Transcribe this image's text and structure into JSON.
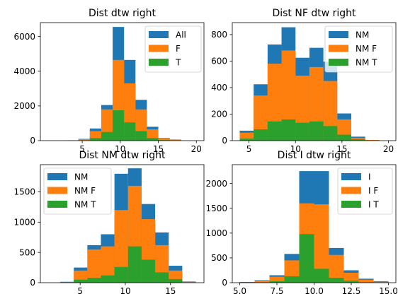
{
  "chart_data": [
    {
      "type": "bar",
      "stacking": "overlay",
      "title": "Dist dtw right",
      "xlim": [
        -0.5,
        21
      ],
      "ylim": [
        0,
        6800
      ],
      "xticks": [
        5,
        10,
        15,
        20
      ],
      "yticks": [
        0,
        2000,
        4000,
        6000
      ],
      "bin_edges": [
        3.0,
        4.5,
        6.0,
        7.5,
        9.0,
        10.5,
        12.0,
        13.5,
        15.0,
        16.5,
        18.0,
        19.5
      ],
      "series": [
        {
          "name": "All",
          "color": "#1f77b4",
          "values": [
            15,
            100,
            700,
            2050,
            6550,
            4650,
            2350,
            800,
            150,
            60,
            0
          ]
        },
        {
          "name": "F",
          "color": "#ff7f0e",
          "values": [
            10,
            80,
            550,
            1800,
            4650,
            3300,
            1800,
            650,
            120,
            40,
            0
          ]
        },
        {
          "name": "T",
          "color": "#2ca02c",
          "values": [
            5,
            20,
            150,
            500,
            1750,
            1050,
            550,
            150,
            30,
            10,
            0
          ]
        }
      ],
      "legend": "upper right"
    },
    {
      "type": "bar",
      "stacking": "overlay",
      "title": "Dist NF dtw right",
      "xlim": [
        3.2,
        20.8
      ],
      "ylim": [
        0,
        890
      ],
      "xticks": [
        5,
        10,
        15,
        20
      ],
      "yticks": [
        0,
        200,
        400,
        600,
        800
      ],
      "bin_edges": [
        4.0,
        5.5,
        7.0,
        8.5,
        10.0,
        11.5,
        13.0,
        14.5,
        16.0,
        17.5,
        19.0,
        20.0
      ],
      "series": [
        {
          "name": "NM",
          "color": "#1f77b4",
          "values": [
            75,
            425,
            725,
            855,
            625,
            700,
            595,
            205,
            30,
            5,
            0
          ]
        },
        {
          "name": "NM F",
          "color": "#ff7f0e",
          "values": [
            60,
            340,
            580,
            680,
            490,
            555,
            450,
            160,
            20,
            5,
            0
          ]
        },
        {
          "name": "NM T",
          "color": "#2ca02c",
          "values": [
            15,
            85,
            145,
            160,
            135,
            145,
            110,
            45,
            10,
            0,
            0
          ]
        }
      ],
      "legend": "upper right"
    },
    {
      "type": "bar",
      "stacking": "overlay",
      "title": "Dist NM dtw right",
      "xlim": [
        0.6,
        18.7
      ],
      "ylim": [
        0,
        1950
      ],
      "xticks": [
        5,
        10,
        15
      ],
      "yticks": [
        0,
        500,
        1000,
        1500
      ],
      "bin_edges": [
        2.8,
        4.3,
        5.8,
        7.3,
        8.8,
        10.3,
        11.8,
        13.3,
        14.8,
        16.3,
        17.8
      ],
      "series": [
        {
          "name": "NM",
          "color": "#1f77b4",
          "values": [
            15,
            250,
            620,
            800,
            1800,
            1890,
            1300,
            830,
            280,
            20
          ]
        },
        {
          "name": "NM F",
          "color": "#ff7f0e",
          "values": [
            10,
            200,
            550,
            600,
            1200,
            1600,
            1050,
            620,
            200,
            15
          ]
        },
        {
          "name": "NM T",
          "color": "#2ca02c",
          "values": [
            5,
            50,
            80,
            120,
            260,
            600,
            380,
            170,
            60,
            5
          ]
        }
      ],
      "legend": "upper left"
    },
    {
      "type": "bar",
      "stacking": "overlay",
      "title": "Dist I dtw right",
      "xlim": [
        4.5,
        15.5
      ],
      "ylim": [
        0,
        2380
      ],
      "xticks": [
        5.0,
        7.5,
        10.0,
        12.5,
        15.0
      ],
      "xtick_labels": [
        "5.0",
        "7.5",
        "10.0",
        "12.5",
        "15.0"
      ],
      "yticks": [
        0,
        500,
        1000,
        1500,
        2000
      ],
      "bin_edges": [
        5.0,
        6.0,
        7.0,
        8.0,
        9.0,
        10.0,
        11.0,
        12.0,
        13.0,
        14.0,
        15.0
      ],
      "series": [
        {
          "name": "I",
          "color": "#1f77b4",
          "values": [
            15,
            50,
            150,
            580,
            2250,
            2250,
            700,
            250,
            80,
            30
          ]
        },
        {
          "name": "I F",
          "color": "#ff7f0e",
          "values": [
            10,
            40,
            120,
            450,
            1600,
            1580,
            560,
            200,
            60,
            20
          ]
        },
        {
          "name": "I T",
          "color": "#2ca02c",
          "values": [
            5,
            10,
            30,
            130,
            980,
            280,
            100,
            40,
            10,
            5
          ]
        }
      ],
      "legend": "upper right"
    }
  ]
}
